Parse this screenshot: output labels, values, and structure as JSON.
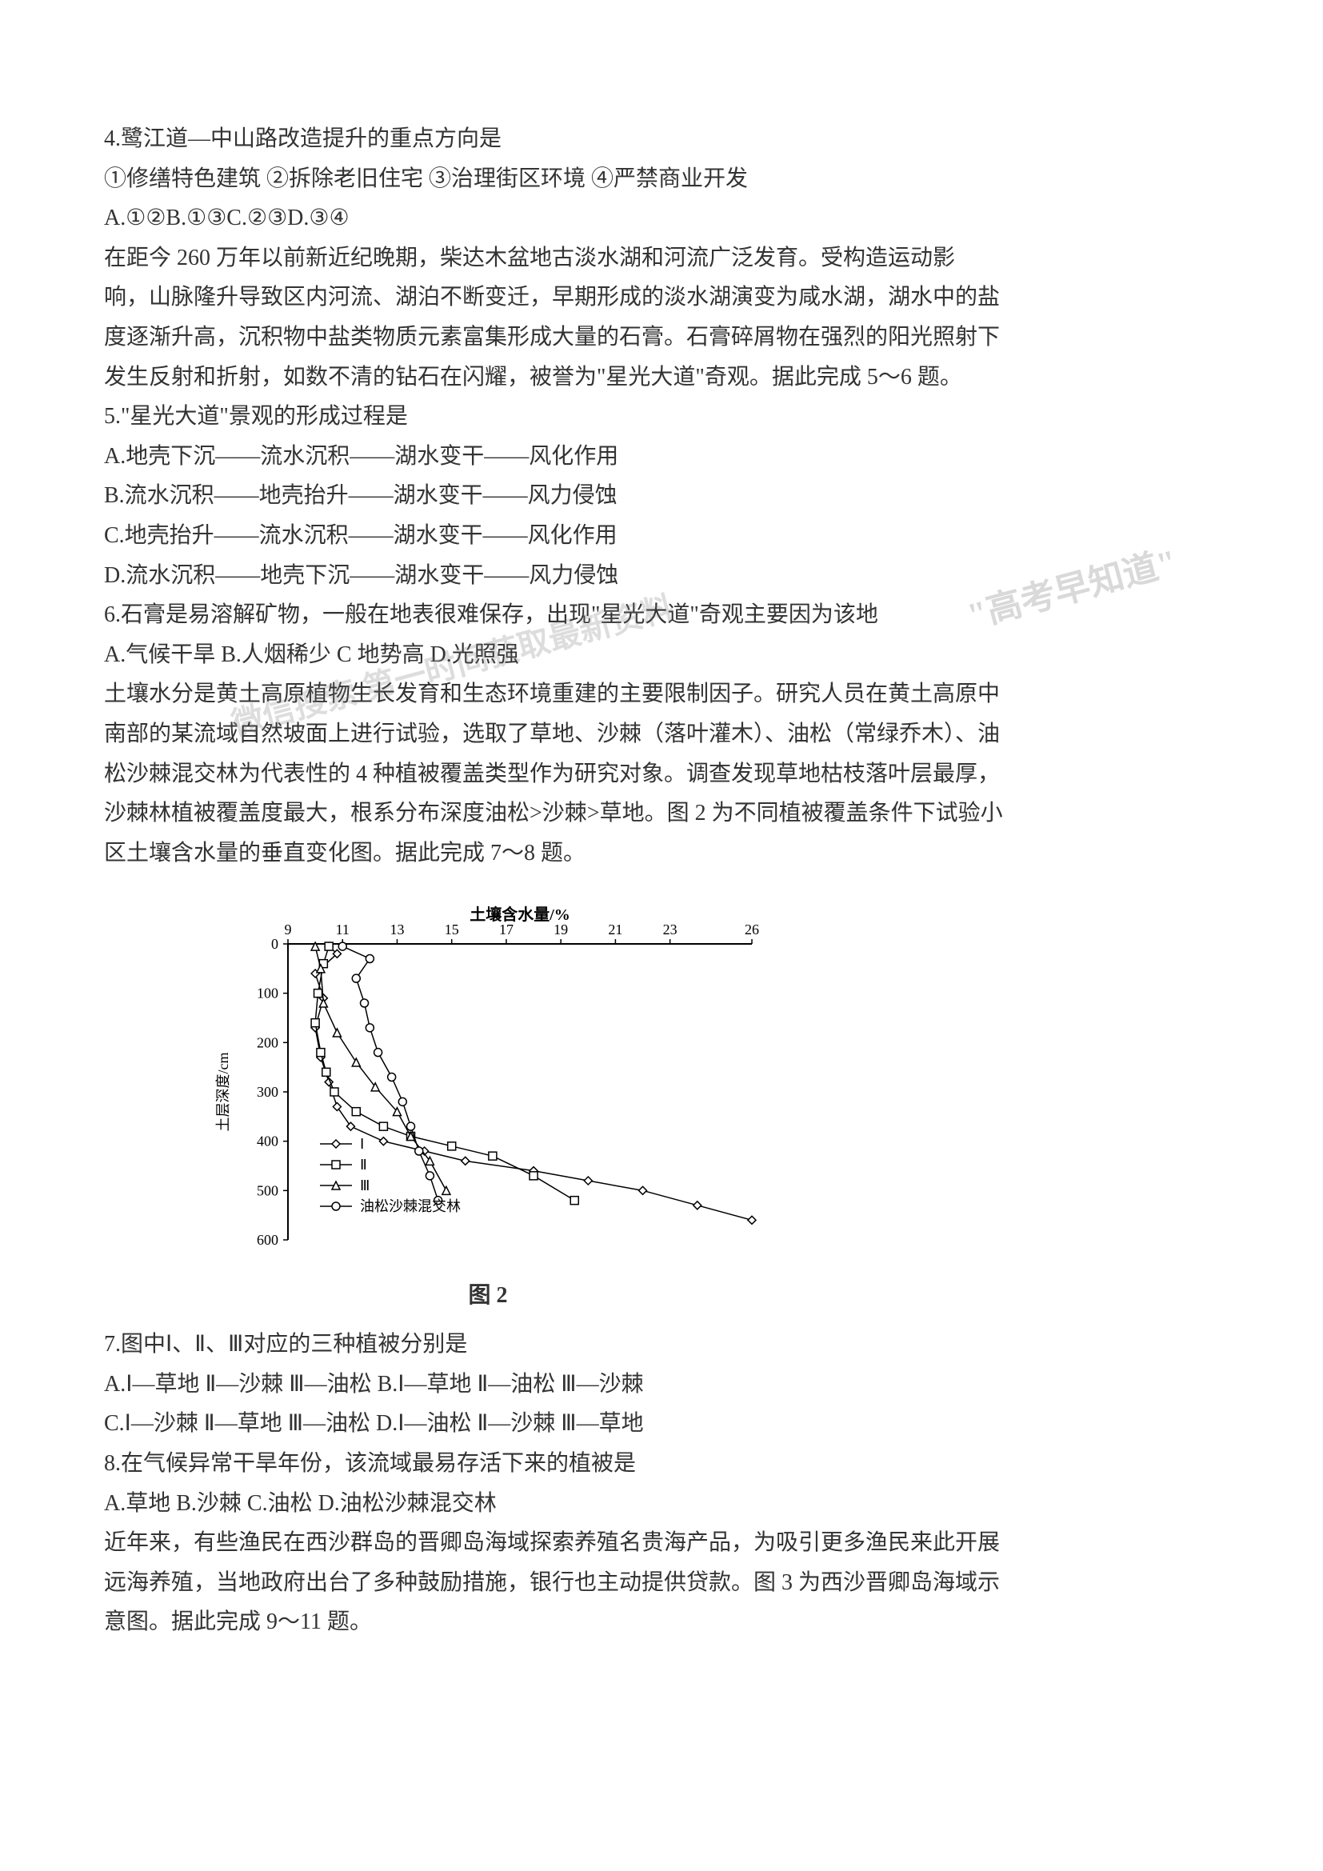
{
  "q4": {
    "stem": "4.鹭江道—中山路改造提升的重点方向是",
    "options_line1": "①修缮特色建筑 ②拆除老旧住宅 ③治理街区环境 ④严禁商业开发",
    "options_line2": "A.①②B.①③C.②③D.③④"
  },
  "passage1": {
    "line1": "在距今 260 万年以前新近纪晚期，柴达木盆地古淡水湖和河流广泛发育。受构造运动影",
    "line2": "响，山脉隆升导致区内河流、湖泊不断变迁，早期形成的淡水湖演变为咸水湖，湖水中的盐",
    "line3": "度逐渐升高，沉积物中盐类物质元素富集形成大量的石膏。石膏碎屑物在强烈的阳光照射下",
    "line4": "发生反射和折射，如数不清的钻石在闪耀，被誉为\"星光大道\"奇观。据此完成 5～6 题。"
  },
  "q5": {
    "stem": "5.\"星光大道\"景观的形成过程是",
    "optA": "A.地壳下沉——流水沉积——湖水变干——风化作用",
    "optB": "B.流水沉积——地壳抬升——湖水变干——风力侵蚀",
    "optC": "C.地壳抬升——流水沉积——湖水变干——风化作用",
    "optD": "D.流水沉积——地壳下沉——湖水变干——风力侵蚀"
  },
  "q6": {
    "stem": "6.石膏是易溶解矿物，一般在地表很难保存，出现\"星光大道\"奇观主要因为该地",
    "options": "A.气候干旱 B.人烟稀少 C 地势高 D.光照强"
  },
  "passage2": {
    "line1": "土壤水分是黄土高原植物生长发育和生态环境重建的主要限制因子。研究人员在黄土高原中",
    "line2": "南部的某流域自然坡面上进行试验，选取了草地、沙棘（落叶灌木）、油松（常绿乔木）、油",
    "line3": "松沙棘混交林为代表性的 4 种植被覆盖类型作为研究对象。调查发现草地枯枝落叶层最厚，",
    "line4": "沙棘林植被覆盖度最大，根系分布深度油松>沙棘>草地。图 2 为不同植被覆盖条件下试验小",
    "line5": "区土壤含水量的垂直变化图。据此完成 7～8 题。"
  },
  "chart": {
    "title": "土壤含水量/%",
    "x_label_values": [
      "9",
      "11",
      "13",
      "15",
      "17",
      "19",
      "21",
      "23",
      "26"
    ],
    "y_label": "土层深度/cm",
    "y_values": [
      "0",
      "100",
      "200",
      "300",
      "400",
      "500",
      "600"
    ],
    "caption": "图 2",
    "legend": {
      "series1": "Ⅰ",
      "series2": "Ⅱ",
      "series3": "Ⅲ",
      "series4": "油松沙棘混交林"
    },
    "colors": {
      "line": "#000000",
      "background": "#ffffff",
      "text": "#000000"
    },
    "axis": {
      "xlim": [
        9,
        26
      ],
      "ylim": [
        0,
        600
      ],
      "y_reversed": true
    },
    "font_size_axis": 18,
    "font_size_title": 20,
    "series_styles": {
      "s1": {
        "marker": "diamond",
        "line": "solid"
      },
      "s2": {
        "marker": "square",
        "line": "solid"
      },
      "s3": {
        "marker": "triangle",
        "line": "solid"
      },
      "s4": {
        "marker": "circle",
        "line": "solid"
      }
    },
    "series_data": {
      "s1": [
        [
          10.5,
          5
        ],
        [
          10.8,
          20
        ],
        [
          10.0,
          60
        ],
        [
          10.3,
          110
        ],
        [
          10.0,
          170
        ],
        [
          10.2,
          230
        ],
        [
          10.5,
          280
        ],
        [
          10.8,
          330
        ],
        [
          11.3,
          370
        ],
        [
          12.5,
          400
        ],
        [
          14.0,
          420
        ],
        [
          15.5,
          440
        ],
        [
          18.0,
          460
        ],
        [
          20.0,
          480
        ],
        [
          22.0,
          500
        ],
        [
          24.0,
          530
        ],
        [
          26.0,
          560
        ]
      ],
      "s2": [
        [
          10.5,
          5
        ],
        [
          10.3,
          40
        ],
        [
          10.1,
          100
        ],
        [
          10.0,
          160
        ],
        [
          10.2,
          220
        ],
        [
          10.4,
          260
        ],
        [
          10.7,
          300
        ],
        [
          11.5,
          340
        ],
        [
          12.5,
          370
        ],
        [
          13.5,
          390
        ],
        [
          15.0,
          410
        ],
        [
          16.5,
          430
        ],
        [
          18.0,
          470
        ],
        [
          19.5,
          520
        ]
      ],
      "s3": [
        [
          10.0,
          5
        ],
        [
          10.2,
          50
        ],
        [
          10.3,
          120
        ],
        [
          10.8,
          180
        ],
        [
          11.5,
          240
        ],
        [
          12.2,
          290
        ],
        [
          13.0,
          340
        ],
        [
          13.5,
          390
        ],
        [
          14.2,
          440
        ],
        [
          14.8,
          500
        ]
      ],
      "s4": [
        [
          11.0,
          5
        ],
        [
          12.0,
          30
        ],
        [
          11.5,
          70
        ],
        [
          11.8,
          120
        ],
        [
          12.0,
          170
        ],
        [
          12.3,
          220
        ],
        [
          12.8,
          270
        ],
        [
          13.2,
          320
        ],
        [
          13.5,
          370
        ],
        [
          13.8,
          420
        ],
        [
          14.2,
          470
        ],
        [
          14.5,
          520
        ]
      ]
    }
  },
  "q7": {
    "stem": "7.图中Ⅰ、Ⅱ、Ⅲ对应的三种植被分别是",
    "line1": "A.Ⅰ—草地 Ⅱ—沙棘 Ⅲ—油松 B.Ⅰ—草地 Ⅱ—油松 Ⅲ—沙棘",
    "line2": "C.Ⅰ—沙棘 Ⅱ—草地 Ⅲ—油松 D.Ⅰ—油松 Ⅱ—沙棘 Ⅲ—草地"
  },
  "q8": {
    "stem": "8.在气候异常干旱年份，该流域最易存活下来的植被是",
    "options": "A.草地 B.沙棘 C.油松 D.油松沙棘混交林"
  },
  "passage3": {
    "line1": "近年来，有些渔民在西沙群岛的晋卿岛海域探索养殖名贵海产品，为吸引更多渔民来此开展",
    "line2": "远海养殖，当地政府出台了多种鼓励措施，银行也主动提供贷款。图 3 为西沙晋卿岛海域示",
    "line3": "意图。据此完成 9～11 题。"
  },
  "watermark1_text": "\"高考早知道\"",
  "watermark2_text": "微信搜索 第一时间获取最新资料"
}
